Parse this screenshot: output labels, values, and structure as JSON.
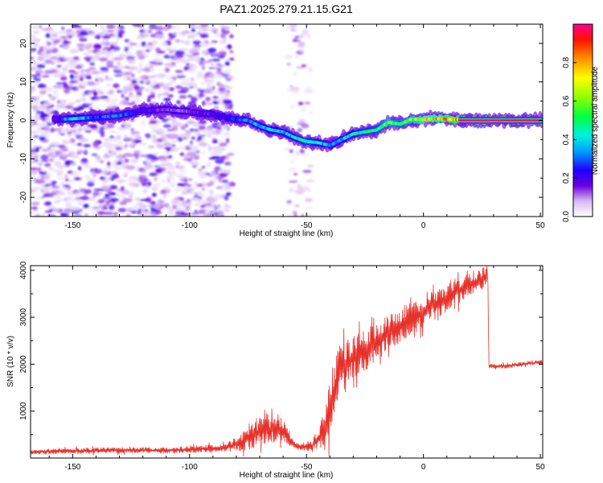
{
  "title": "PAZ1.2025.279.21.15.G21",
  "colors": {
    "snr_line": "#e8302a",
    "axis": "#000000",
    "background": "#ffffff"
  },
  "colorbar": {
    "label": "Normalized spectral amplitude",
    "ticks": [
      "0.0",
      "0.2",
      "0.4",
      "0.6",
      "0.8"
    ],
    "tick_values": [
      0.0,
      0.2,
      0.4,
      0.6,
      0.8
    ],
    "range": [
      0,
      1
    ]
  },
  "chart_data": [
    {
      "type": "heatmap",
      "name": "spectrogram",
      "xlabel": "Height of straight line (km)",
      "ylabel": "Frequency (Hz)",
      "xlim": [
        -168,
        51
      ],
      "ylim": [
        -25,
        25
      ],
      "x_ticks": [
        -150,
        -100,
        -50,
        0,
        50
      ],
      "x_tick_labels": [
        "-150",
        "-100",
        "-50",
        "0",
        "50"
      ],
      "y_ticks": [
        -20,
        -10,
        0,
        10,
        20
      ],
      "y_tick_labels": [
        "-20",
        "-10",
        "0",
        "10",
        "20"
      ],
      "ridge": {
        "x": [
          -158,
          -150,
          -140,
          -130,
          -120,
          -110,
          -100,
          -90,
          -85,
          -80,
          -75,
          -70,
          -65,
          -60,
          -55,
          -50,
          -45,
          -40,
          -35,
          -30,
          -25,
          -20,
          -15,
          -10,
          -5,
          0,
          5,
          10,
          15,
          20,
          30,
          40,
          51
        ],
        "y": [
          0.2,
          0.4,
          0.8,
          1.2,
          2.5,
          2.8,
          2.3,
          1.5,
          0.8,
          0.2,
          0.0,
          -1.5,
          -2.5,
          -3.0,
          -4.5,
          -5.5,
          -5.8,
          -6.5,
          -5.0,
          -3.5,
          -3.0,
          -2.5,
          -0.5,
          -1.0,
          0.3,
          0.2,
          0.5,
          0.3,
          0.2,
          0.0,
          0.0,
          0.0,
          0.0
        ],
        "amplitude": [
          0.15,
          0.45,
          0.3,
          0.35,
          0.2,
          0.15,
          0.15,
          0.2,
          0.25,
          0.3,
          0.35,
          0.4,
          0.45,
          0.4,
          0.45,
          0.5,
          0.45,
          0.35,
          0.4,
          0.45,
          0.5,
          0.5,
          0.65,
          0.55,
          0.65,
          0.75,
          0.8,
          0.85,
          0.9,
          1.0,
          1.0,
          1.0,
          1.0
        ]
      },
      "noise_regions": [
        {
          "x_range": [
            -168,
            -82
          ],
          "y_range": [
            -25,
            25
          ],
          "amplitude": 0.12
        },
        {
          "x_range": [
            -58,
            -48
          ],
          "y_range": [
            -25,
            25
          ],
          "amplitude": 0.08
        }
      ]
    },
    {
      "type": "line",
      "name": "snr",
      "xlabel": "Height of straight line (km)",
      "ylabel": "SNR (10 * v/v)",
      "xlim": [
        -168,
        51
      ],
      "ylim": [
        0,
        4100
      ],
      "x_ticks": [
        -150,
        -100,
        -50,
        0,
        50
      ],
      "x_tick_labels": [
        "-150",
        "-100",
        "-50",
        "0",
        "50"
      ],
      "y_ticks": [
        1000,
        2000,
        3000,
        4000
      ],
      "y_tick_labels": [
        "1000",
        "2000",
        "3000",
        "4000"
      ],
      "series": [
        {
          "name": "SNR",
          "x": [
            -168,
            -150,
            -130,
            -110,
            -95,
            -88,
            -82,
            -78,
            -74,
            -70,
            -66,
            -62,
            -58,
            -55,
            -52,
            -48,
            -45,
            -42,
            -40,
            -38,
            -36,
            -34,
            -32,
            -30,
            -28,
            -26,
            -24,
            -22,
            -20,
            -18,
            -16,
            -14,
            -12,
            -10,
            -8,
            -6,
            -4,
            -2,
            0,
            2,
            4,
            6,
            8,
            10,
            12,
            14,
            16,
            18,
            20,
            22,
            24,
            26,
            27.5,
            28,
            30,
            35,
            40,
            45,
            51
          ],
          "y": [
            130,
            150,
            170,
            160,
            200,
            200,
            260,
            340,
            450,
            560,
            600,
            650,
            430,
            260,
            230,
            250,
            380,
            700,
            1050,
            1500,
            1900,
            2000,
            2050,
            2150,
            2200,
            2250,
            2300,
            2400,
            2480,
            2550,
            2650,
            2700,
            2750,
            2800,
            2900,
            2950,
            3000,
            3050,
            3100,
            3200,
            3250,
            3300,
            3350,
            3400,
            3500,
            3550,
            3600,
            3650,
            3700,
            3750,
            3800,
            3850,
            3950,
            1960,
            1950,
            1960,
            1990,
            2020,
            2040
          ],
          "spread": [
            50,
            60,
            60,
            60,
            80,
            90,
            120,
            200,
            260,
            300,
            300,
            320,
            180,
            80,
            70,
            100,
            220,
            450,
            650,
            600,
            550,
            500,
            480,
            460,
            450,
            440,
            430,
            420,
            410,
            400,
            390,
            380,
            370,
            360,
            360,
            350,
            350,
            340,
            330,
            330,
            320,
            320,
            310,
            300,
            300,
            290,
            280,
            270,
            260,
            250,
            250,
            250,
            200,
            60,
            50,
            50,
            50,
            50,
            50
          ]
        }
      ]
    }
  ]
}
